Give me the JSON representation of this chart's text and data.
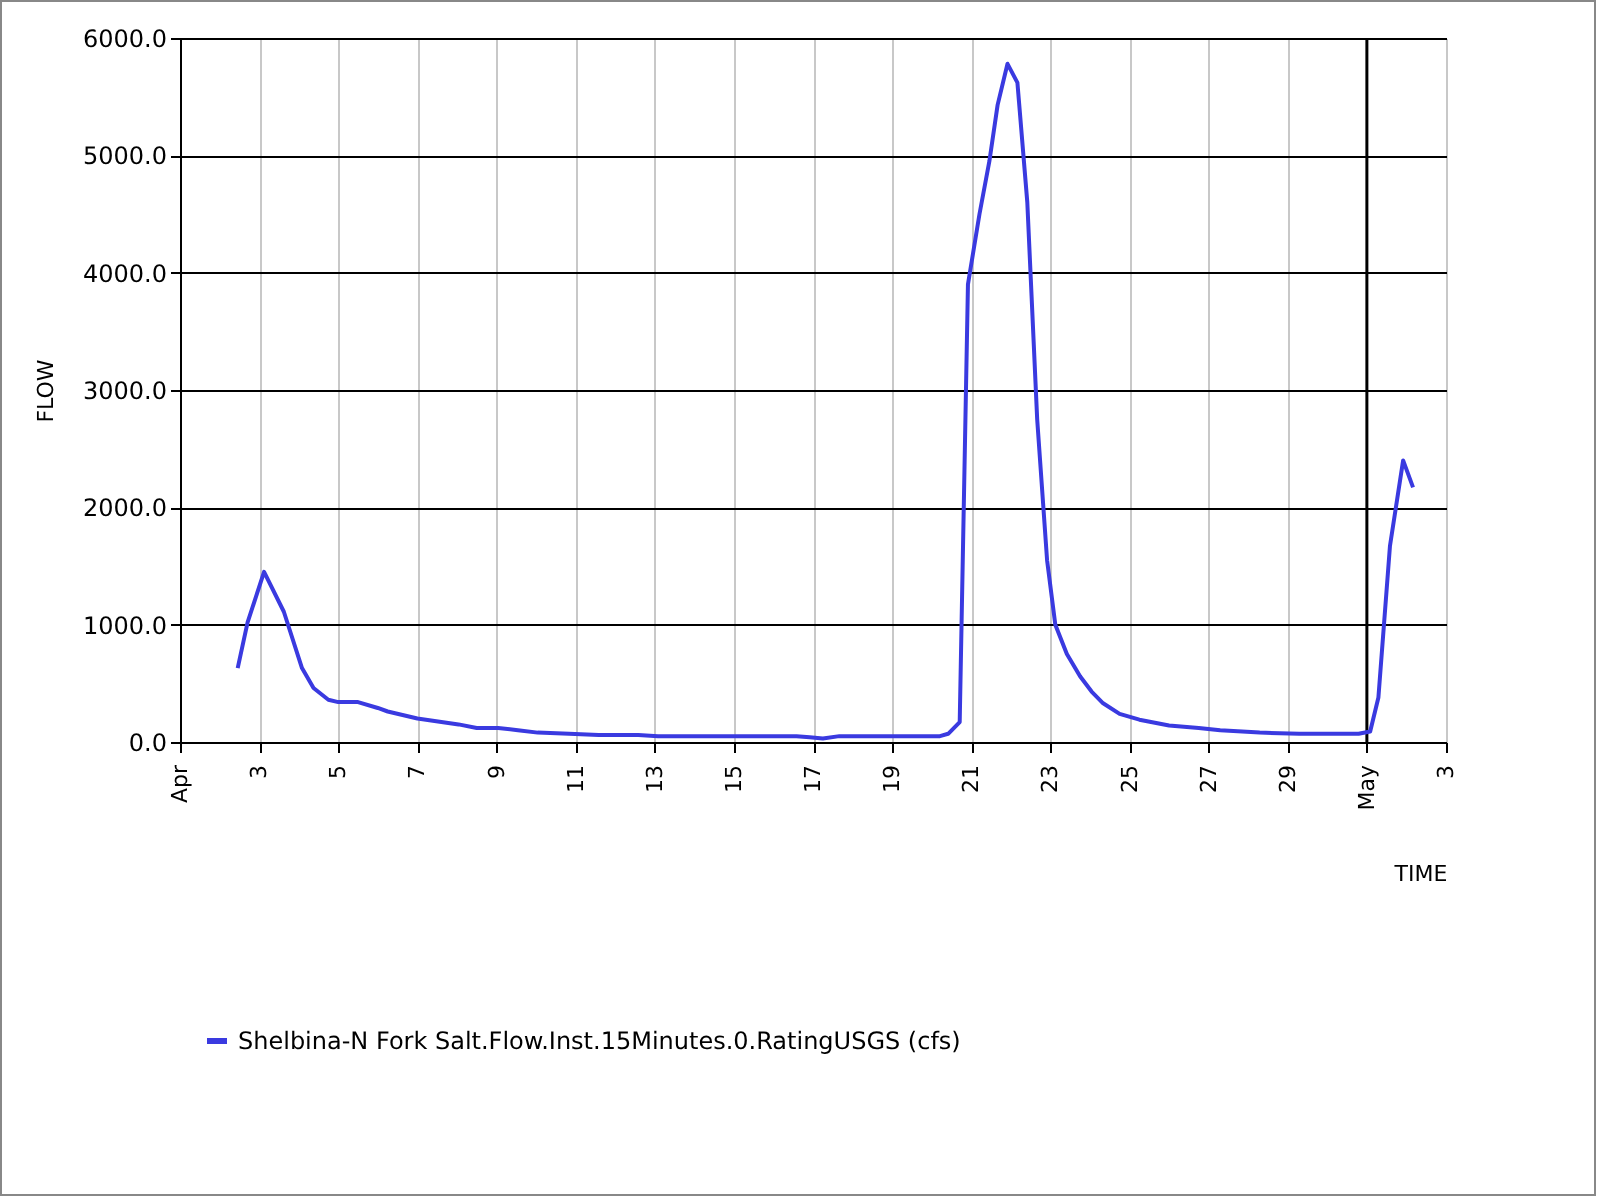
{
  "chart_data": {
    "type": "line",
    "xlabel": "TIME",
    "ylabel": "FLOW",
    "legend": "bottom",
    "grid": true,
    "xlim": [
      "--04-01",
      "--05-03"
    ],
    "xticks": [
      {
        "value": "--04-01",
        "label": "Apr"
      },
      {
        "value": "--04-03",
        "label": "3"
      },
      {
        "value": "--04-05",
        "label": "5"
      },
      {
        "value": "--04-07",
        "label": "7"
      },
      {
        "value": "--04-09",
        "label": "9"
      },
      {
        "value": "--04-11",
        "label": "11"
      },
      {
        "value": "--04-13",
        "label": "13"
      },
      {
        "value": "--04-15",
        "label": "15"
      },
      {
        "value": "--04-17",
        "label": "17"
      },
      {
        "value": "--04-19",
        "label": "19"
      },
      {
        "value": "--04-21",
        "label": "21"
      },
      {
        "value": "--04-23",
        "label": "23"
      },
      {
        "value": "--04-25",
        "label": "25"
      },
      {
        "value": "--04-27",
        "label": "27"
      },
      {
        "value": "--04-29",
        "label": "29"
      },
      {
        "value": "--05-01",
        "label": "May"
      },
      {
        "value": "--05-03",
        "label": "3"
      }
    ],
    "ylim": [
      0,
      6000
    ],
    "yticks": [
      {
        "value": 0,
        "label": "0.0"
      },
      {
        "value": 1000,
        "label": "1000.0"
      },
      {
        "value": 2000,
        "label": "2000.0"
      },
      {
        "value": 3000,
        "label": "3000.0"
      },
      {
        "value": 4000,
        "label": "4000.0"
      },
      {
        "value": 5000,
        "label": "5000.0"
      },
      {
        "value": 6000,
        "label": "6000.0"
      }
    ],
    "ref_lines": [
      {
        "axis": "x",
        "value": "--05-01",
        "label": null,
        "color": "#000000"
      }
    ],
    "series": [
      {
        "name": "Shelbina-N Fork Salt.Flow.Inst.15Minutes.0.RatingUSGS (cfs)",
        "color": "#3a3ae0",
        "x": [
          "--04-02T11:00",
          "--04-02T17:00",
          "--04-03T03:00",
          "--04-03T15:00",
          "--04-04T02:00",
          "--04-04T09:00",
          "--04-04T18:00",
          "--04-05T00:00",
          "--04-05T12:00",
          "--04-06T00:00",
          "--04-06T06:00",
          "--04-07T00:00",
          "--04-08T01:00",
          "--04-08T12:00",
          "--04-09T01:00",
          "--04-09T13:00",
          "--04-10T01:00",
          "--04-10T20:00",
          "--04-11T14:00",
          "--04-12T14:00",
          "--04-13T02:00",
          "--04-16T14:00",
          "--04-16T22:00",
          "--04-17T06:00",
          "--04-17T16:00",
          "--04-20T05:00",
          "--04-20T10:00",
          "--04-20T17:00",
          "--04-20T22:00",
          "--04-21T05:00",
          "--04-21T11:00",
          "--04-21T16:00",
          "--04-21T22:00",
          "--04-22T04:00",
          "--04-22T10:00",
          "--04-22T16:00",
          "--04-22T22:00",
          "--04-23T03:00",
          "--04-23T10:00",
          "--04-23T18:00",
          "--04-24T01:00",
          "--04-24T08:00",
          "--04-24T18:00",
          "--04-25T06:00",
          "--04-26T00:00",
          "--04-26T18:00",
          "--04-27T07:00",
          "--04-28T07:00",
          "--04-29T07:00",
          "--04-30T19:00",
          "--05-01T02:00",
          "--05-01T07:00",
          "--05-01T14:00",
          "--05-01T22:00",
          "--05-02T04:00"
        ],
        "values": [
          630,
          1020,
          1450,
          1110,
          630,
          460,
          360,
          340,
          340,
          290,
          260,
          200,
          150,
          120,
          120,
          100,
          80,
          70,
          60,
          60,
          50,
          50,
          40,
          30,
          50,
          50,
          70,
          170,
          3900,
          4500,
          4950,
          5430,
          5780,
          5620,
          4600,
          2750,
          1550,
          1000,
          750,
          560,
          430,
          330,
          240,
          190,
          140,
          120,
          100,
          80,
          70,
          70,
          90,
          380,
          1670,
          2400,
          2170
        ]
      }
    ]
  }
}
